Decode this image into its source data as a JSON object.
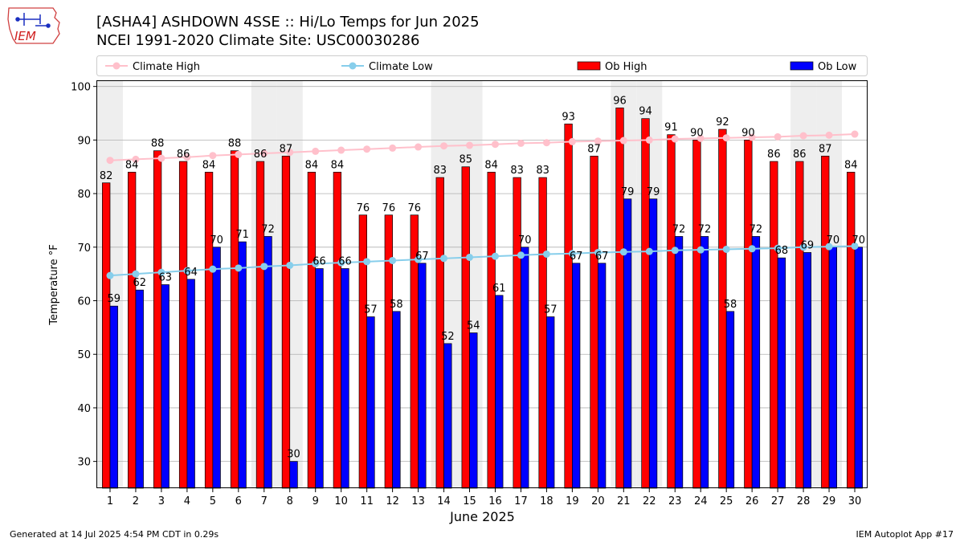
{
  "header": {
    "title_line1": "[ASHA4] ASHDOWN 4SSE :: Hi/Lo Temps for Jun 2025",
    "title_line2": "NCEI 1991-2020 Climate Site: USC00030286"
  },
  "logo": {
    "text": "IEM"
  },
  "footer": {
    "generated": "Generated at 14 Jul 2025 4:54 PM CDT in 0.29s",
    "app": "IEM Autoplot App #17"
  },
  "colors": {
    "ob_high": "#ff0000",
    "ob_low": "#0000ff",
    "climate_high": "#ffc0cb",
    "climate_low": "#87ceeb",
    "weekend_band": "#eeeeee",
    "grid": "#b0b0b0"
  },
  "chart_data": {
    "type": "bar",
    "xlabel": "June 2025",
    "ylabel": "Temperature °F",
    "ylim": [
      25,
      101
    ],
    "yticks": [
      30,
      40,
      50,
      60,
      70,
      80,
      90,
      100
    ],
    "grid": "horizontal",
    "legend_position": "top",
    "weekend_days": [
      1,
      7,
      8,
      14,
      15,
      21,
      22,
      28,
      29
    ],
    "categories": [
      1,
      2,
      3,
      4,
      5,
      6,
      7,
      8,
      9,
      10,
      11,
      12,
      13,
      14,
      15,
      16,
      17,
      18,
      19,
      20,
      21,
      22,
      23,
      24,
      25,
      26,
      27,
      28,
      29,
      30
    ],
    "series": [
      {
        "name": "Ob High",
        "kind": "bar",
        "values": [
          82,
          84,
          88,
          86,
          84,
          88,
          86,
          87,
          84,
          84,
          76,
          76,
          76,
          83,
          85,
          84,
          83,
          83,
          93,
          87,
          96,
          94,
          91,
          90,
          92,
          90,
          86,
          86,
          87,
          84
        ]
      },
      {
        "name": "Ob Low",
        "kind": "bar",
        "values": [
          59,
          62,
          63,
          64,
          70,
          71,
          72,
          30,
          66,
          66,
          57,
          58,
          67,
          52,
          54,
          61,
          70,
          57,
          67,
          67,
          79,
          79,
          72,
          72,
          58,
          72,
          68,
          69,
          70,
          70
        ]
      },
      {
        "name": "Climate High",
        "kind": "line",
        "values": [
          86.2,
          86.4,
          86.6,
          86.8,
          87.1,
          87.3,
          87.5,
          87.7,
          87.9,
          88.1,
          88.3,
          88.5,
          88.7,
          88.9,
          89.0,
          89.2,
          89.4,
          89.5,
          89.7,
          89.8,
          89.9,
          90.0,
          90.2,
          90.3,
          90.4,
          90.5,
          90.6,
          90.8,
          90.9,
          91.1
        ]
      },
      {
        "name": "Climate Low",
        "kind": "line",
        "values": [
          64.7,
          65.0,
          65.3,
          65.6,
          65.9,
          66.1,
          66.4,
          66.6,
          66.9,
          67.1,
          67.3,
          67.5,
          67.7,
          67.9,
          68.1,
          68.3,
          68.5,
          68.7,
          68.8,
          69.0,
          69.1,
          69.2,
          69.4,
          69.5,
          69.6,
          69.7,
          69.8,
          70.0,
          70.1,
          70.2
        ]
      }
    ]
  }
}
